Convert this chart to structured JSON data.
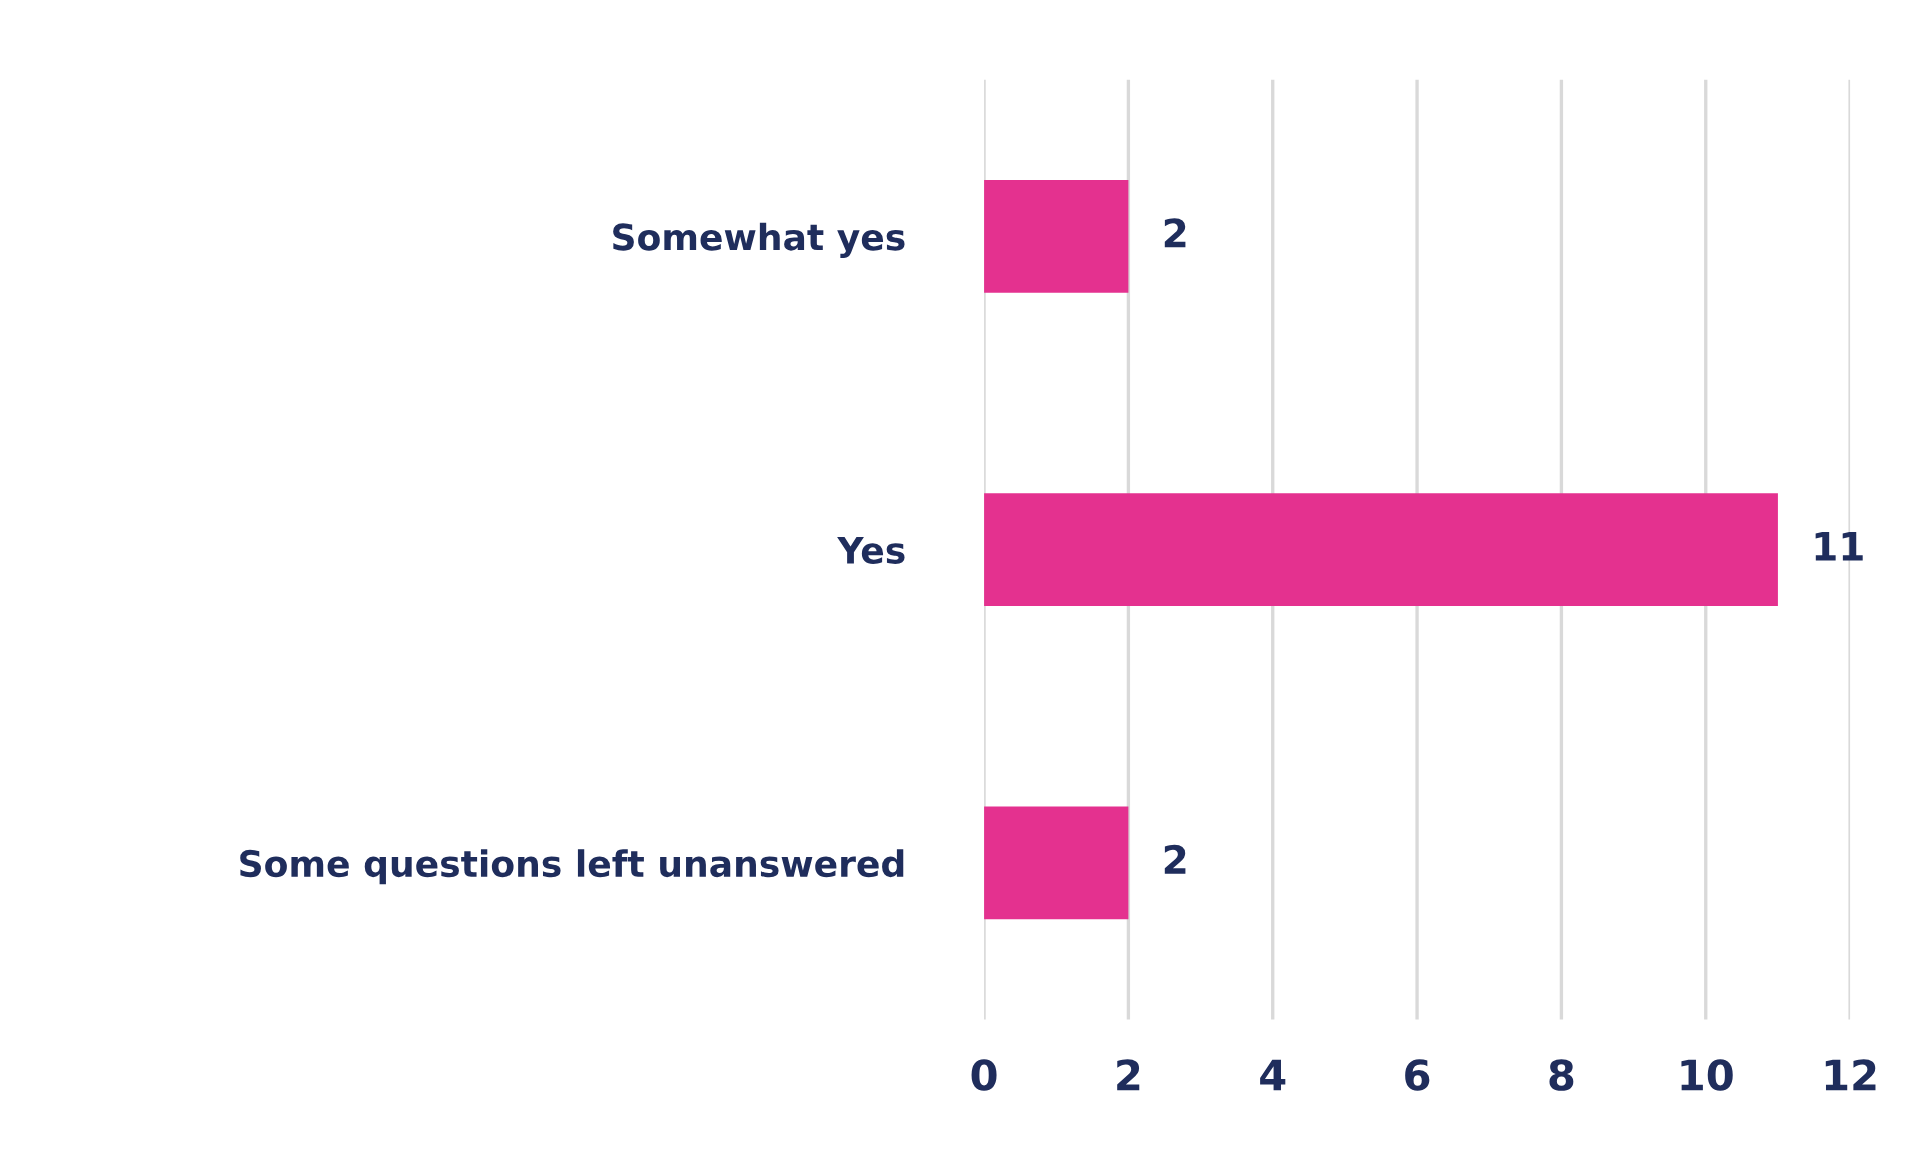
{
  "chart_data": {
    "type": "bar",
    "orientation": "horizontal",
    "categories": [
      "Somewhat yes",
      "Yes",
      "Some questions left unanswered"
    ],
    "values": [
      2,
      11,
      2
    ],
    "color": "#e4318f",
    "xlim": [
      0,
      12
    ],
    "xticks": [
      0,
      2,
      4,
      6,
      8,
      10,
      12
    ],
    "grid": "x",
    "data_labels": true
  }
}
